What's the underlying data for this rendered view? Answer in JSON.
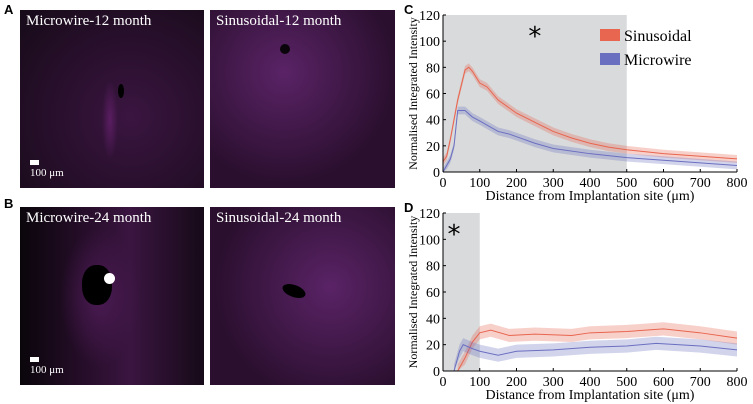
{
  "panels": {
    "a": "A",
    "b": "B",
    "c": "C",
    "d": "D"
  },
  "images": [
    {
      "title": "Microwire-12 month",
      "scale": "100  μm"
    },
    {
      "title": "Sinusoidal-12 month"
    },
    {
      "title": "Microwire-24 month",
      "scale": "100  μm"
    },
    {
      "title": "Sinusoidal-24 month"
    }
  ],
  "colors": {
    "sinusoidal": "#e8654f",
    "microwire": "#6b6fc0",
    "shade": "#d9dadb"
  },
  "chart_data": [
    {
      "type": "line",
      "panel": "C",
      "xlabel": "Distance from Implantation site (μm)",
      "ylabel": "Normalised Integrated Intensity",
      "xlim": [
        0,
        800
      ],
      "ylim": [
        0,
        120
      ],
      "xticks": [
        0,
        100,
        200,
        300,
        400,
        500,
        600,
        700,
        800
      ],
      "yticks": [
        0,
        20,
        40,
        60,
        80,
        100,
        120
      ],
      "shaded_region": [
        0,
        500
      ],
      "annotation": "*",
      "legend": [
        "Sinusoidal",
        "Microwire"
      ],
      "legend_position": "top-right",
      "series": [
        {
          "name": "Sinusoidal",
          "x": [
            0,
            10,
            20,
            40,
            60,
            70,
            80,
            100,
            120,
            150,
            200,
            250,
            300,
            350,
            400,
            450,
            500,
            600,
            700,
            800
          ],
          "y": [
            8,
            12,
            25,
            55,
            78,
            80,
            77,
            68,
            65,
            55,
            45,
            38,
            31,
            26,
            22,
            19,
            17,
            14,
            12,
            10
          ],
          "err": 3
        },
        {
          "name": "Microwire",
          "x": [
            0,
            10,
            20,
            30,
            40,
            60,
            80,
            100,
            150,
            180,
            200,
            250,
            300,
            400,
            500,
            600,
            700,
            800
          ],
          "y": [
            0,
            5,
            10,
            20,
            47,
            47,
            42,
            39,
            31,
            29,
            27,
            22,
            18,
            14,
            11,
            9,
            7,
            5
          ],
          "err": 3
        }
      ]
    },
    {
      "type": "line",
      "panel": "D",
      "xlabel": "Distance from Implantation site (μm)",
      "ylabel": "Normalised Integrated Intensity",
      "xlim": [
        0,
        800
      ],
      "ylim": [
        0,
        120
      ],
      "xticks": [
        0,
        100,
        200,
        300,
        400,
        500,
        600,
        700,
        800
      ],
      "yticks": [
        0,
        20,
        40,
        60,
        80,
        100,
        120
      ],
      "shaded_region": [
        0,
        100
      ],
      "annotation": "*",
      "series": [
        {
          "name": "Sinusoidal",
          "x": [
            40,
            60,
            80,
            100,
            130,
            180,
            250,
            350,
            400,
            500,
            600,
            700,
            800
          ],
          "y": [
            0,
            10,
            22,
            29,
            31,
            27,
            28,
            27,
            29,
            30,
            32,
            29,
            25
          ],
          "err": 5
        },
        {
          "name": "Microwire",
          "x": [
            30,
            45,
            55,
            80,
            100,
            150,
            200,
            300,
            400,
            500,
            580,
            700,
            800
          ],
          "y": [
            0,
            15,
            20,
            17,
            15,
            12,
            15,
            16,
            18,
            19,
            21,
            19,
            16
          ],
          "err": 5
        }
      ]
    }
  ]
}
